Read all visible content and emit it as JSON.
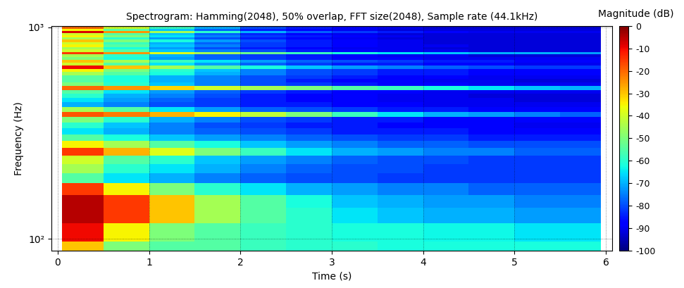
{
  "chart_data": {
    "type": "heatmap",
    "title": "Spectrogram: Hamming(2048), 50% overlap, FFT size(2048), Sample rate (44.1kHz)",
    "x_label": "Time (s)",
    "y_label": "Frequency (Hz)",
    "log": "y",
    "grid": true,
    "xlim": [
      -0.07,
      6.07
    ],
    "xticks": [
      0,
      1,
      2,
      3,
      4,
      5,
      6
    ],
    "ylim": [
      88,
      1014
    ],
    "yticks": [
      {
        "value": 100,
        "label": "10²"
      },
      {
        "value": 1000,
        "label": "10³"
      }
    ],
    "x_edges": [
      0.05,
      0.5,
      1.0,
      1.5,
      2.0,
      2.5,
      3.0,
      3.5,
      4.0,
      4.5,
      5.0,
      5.5,
      5.95
    ],
    "y_edges": [
      75.4,
      96.9,
      118.4,
      140.0,
      161.5,
      183.0,
      204.6,
      226.1,
      247.6,
      269.2,
      290.7,
      312.2,
      333.8,
      355.3,
      376.8,
      398.4,
      419.9,
      441.4,
      463.0,
      484.5,
      506.0,
      527.6,
      549.1,
      570.6,
      592.2,
      613.7,
      635.2,
      656.8,
      678.3,
      699.8,
      721.4,
      742.9,
      764.4,
      786.0,
      807.5,
      829.0,
      850.6,
      872.1,
      893.6,
      915.2,
      936.7,
      958.2,
      979.8,
      1001.3,
      1022.8
    ],
    "cells": [
      [
        -30,
        -50,
        -55,
        -55,
        -58,
        -60,
        -60,
        -62,
        -62,
        -62,
        -62,
        -62
      ],
      [
        -10,
        -35,
        -50,
        -55,
        -58,
        -60,
        -62,
        -62,
        -63,
        -63,
        -65,
        -65
      ],
      [
        -5,
        -15,
        -30,
        -45,
        -55,
        -60,
        -65,
        -68,
        -70,
        -70,
        -72,
        -72
      ],
      [
        -5,
        -15,
        -30,
        -45,
        -55,
        -62,
        -68,
        -70,
        -72,
        -72,
        -75,
        -75
      ],
      [
        -15,
        -35,
        -50,
        -60,
        -65,
        -70,
        -72,
        -75,
        -75,
        -78,
        -78,
        -78
      ],
      [
        -55,
        -65,
        -70,
        -75,
        -78,
        -80,
        -80,
        -82,
        -82,
        -82,
        -82,
        -82
      ],
      [
        -45,
        -60,
        -65,
        -70,
        -75,
        -78,
        -80,
        -80,
        -82,
        -82,
        -82,
        -82
      ],
      [
        -40,
        -55,
        -60,
        -68,
        -72,
        -75,
        -78,
        -80,
        -80,
        -82,
        -82,
        -82
      ],
      [
        -15,
        -28,
        -38,
        -50,
        -58,
        -65,
        -70,
        -72,
        -75,
        -75,
        -78,
        -78
      ],
      [
        -35,
        -45,
        -55,
        -62,
        -68,
        -72,
        -75,
        -78,
        -78,
        -80,
        -80,
        -80
      ],
      [
        -55,
        -62,
        -68,
        -72,
        -75,
        -78,
        -80,
        -82,
        -82,
        -85,
        -85,
        -85
      ],
      [
        -65,
        -70,
        -75,
        -78,
        -80,
        -82,
        -85,
        -85,
        -85,
        -88,
        -88,
        -88
      ],
      [
        -60,
        -68,
        -75,
        -80,
        -82,
        -85,
        -85,
        -88,
        -88,
        -88,
        -90,
        -90
      ],
      [
        -50,
        -60,
        -70,
        -75,
        -80,
        -82,
        -85,
        -85,
        -88,
        -88,
        -88,
        -88
      ],
      [
        -18,
        -22,
        -28,
        -35,
        -42,
        -50,
        -58,
        -65,
        -70,
        -72,
        -75,
        -78
      ],
      [
        -45,
        -55,
        -65,
        -72,
        -78,
        -80,
        -82,
        -85,
        -85,
        -88,
        -88,
        -88
      ],
      [
        -70,
        -75,
        -80,
        -82,
        -85,
        -85,
        -88,
        -88,
        -90,
        -90,
        -90,
        -90
      ],
      [
        -65,
        -72,
        -78,
        -82,
        -85,
        -88,
        -88,
        -90,
        -90,
        -90,
        -92,
        -92
      ],
      [
        -60,
        -70,
        -75,
        -80,
        -85,
        -88,
        -88,
        -90,
        -90,
        -92,
        -92,
        -92
      ],
      [
        -55,
        -65,
        -72,
        -78,
        -82,
        -85,
        -88,
        -88,
        -90,
        -90,
        -90,
        -90
      ],
      [
        -20,
        -25,
        -32,
        -40,
        -45,
        -50,
        -55,
        -58,
        -62,
        -65,
        -68,
        -70
      ],
      [
        -50,
        -60,
        -68,
        -75,
        -80,
        -82,
        -85,
        -88,
        -88,
        -90,
        -90,
        -90
      ],
      [
        -55,
        -62,
        -70,
        -75,
        -80,
        -85,
        -88,
        -88,
        -90,
        -90,
        -92,
        -92
      ],
      [
        -55,
        -62,
        -70,
        -75,
        -80,
        -82,
        -85,
        -88,
        -88,
        -90,
        -90,
        -90
      ],
      [
        -45,
        -55,
        -62,
        -70,
        -75,
        -80,
        -82,
        -85,
        -85,
        -88,
        -88,
        -88
      ],
      [
        -35,
        -50,
        -60,
        -68,
        -75,
        -80,
        -82,
        -85,
        -85,
        -88,
        -88,
        -88
      ],
      [
        -10,
        -30,
        -45,
        -55,
        -62,
        -68,
        -72,
        -75,
        -78,
        -80,
        -82,
        -82
      ],
      [
        -40,
        -55,
        -65,
        -72,
        -78,
        -82,
        -85,
        -85,
        -88,
        -88,
        -90,
        -90
      ],
      [
        -30,
        -45,
        -58,
        -65,
        -72,
        -78,
        -80,
        -82,
        -85,
        -85,
        -88,
        -88
      ],
      [
        -50,
        -62,
        -72,
        -78,
        -82,
        -85,
        -88,
        -88,
        -90,
        -90,
        -90,
        -90
      ],
      [
        -45,
        -60,
        -70,
        -78,
        -82,
        -85,
        -88,
        -90,
        -90,
        -92,
        -92,
        -92
      ],
      [
        -15,
        -25,
        -38,
        -45,
        -52,
        -58,
        -62,
        -65,
        -68,
        -70,
        -70,
        -72
      ],
      [
        -40,
        -55,
        -68,
        -75,
        -80,
        -85,
        -88,
        -90,
        -90,
        -92,
        -92,
        -92
      ],
      [
        -45,
        -62,
        -72,
        -80,
        -85,
        -88,
        -90,
        -90,
        -92,
        -92,
        -92,
        -92
      ],
      [
        -35,
        -55,
        -68,
        -75,
        -82,
        -85,
        -88,
        -90,
        -90,
        -92,
        -92,
        -92
      ],
      [
        -40,
        -58,
        -70,
        -78,
        -82,
        -85,
        -88,
        -90,
        -92,
        -92,
        -92,
        -92
      ],
      [
        -30,
        -50,
        -62,
        -72,
        -80,
        -85,
        -88,
        -90,
        -92,
        -92,
        -92,
        -92
      ],
      [
        -45,
        -60,
        -72,
        -80,
        -85,
        -88,
        -90,
        -92,
        -92,
        -92,
        -92,
        -92
      ],
      [
        -35,
        -50,
        -65,
        -75,
        -82,
        -85,
        -88,
        -90,
        -92,
        -92,
        -92,
        -92
      ],
      [
        -40,
        -55,
        -68,
        -78,
        -84,
        -88,
        -90,
        -92,
        -92,
        -92,
        -92,
        -92
      ],
      [
        -8,
        -25,
        -45,
        -60,
        -70,
        -78,
        -82,
        -85,
        -88,
        -90,
        -90,
        -90
      ],
      [
        -35,
        -55,
        -68,
        -78,
        -85,
        -88,
        -90,
        -92,
        -92,
        -92,
        -92,
        -92
      ],
      [
        -20,
        -40,
        -58,
        -70,
        -80,
        -85,
        -88,
        -90,
        -92,
        -92,
        -92,
        -92
      ],
      [
        -50,
        -65,
        -75,
        -82,
        -88,
        -90,
        -92,
        -92,
        -92,
        -92,
        -92,
        -92
      ]
    ],
    "colorbar": {
      "label": "Magnitude (dB)",
      "range": [
        -100,
        0
      ],
      "ticks": [
        0,
        -10,
        -20,
        -30,
        -40,
        -50,
        -60,
        -70,
        -80,
        -90,
        -100
      ]
    }
  }
}
